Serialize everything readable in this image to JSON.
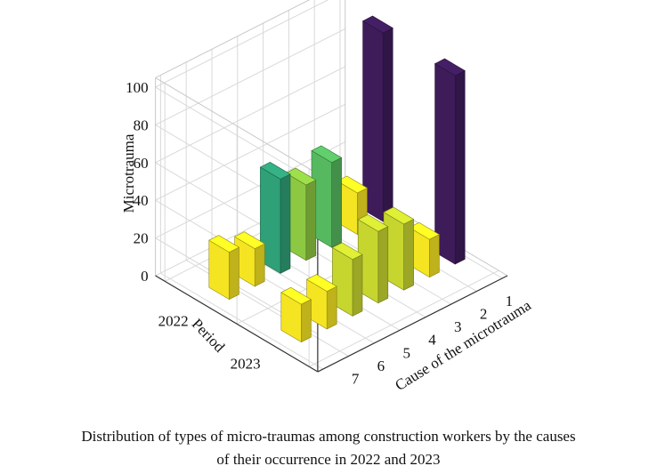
{
  "chart_data": {
    "type": "bar3d",
    "zlabel": "Microtrauma",
    "xlabel": "Cause of the microtrauma",
    "ylabel": "Period",
    "causes": [
      "1",
      "2",
      "3",
      "4",
      "5",
      "6",
      "7"
    ],
    "periods": [
      "2023",
      "2022"
    ],
    "z_ticks": [
      "0",
      "20",
      "40",
      "60",
      "80",
      "100"
    ],
    "zlim": [
      0,
      100
    ],
    "series": [
      {
        "period": "2023",
        "values": [
          100,
          20,
          35,
          38,
          30,
          20,
          20
        ]
      },
      {
        "period": "2022",
        "values": [
          100,
          22,
          45,
          40,
          50,
          20,
          25
        ]
      }
    ],
    "grid": true
  },
  "caption": {
    "line1": "Distribution of types of micro-traumas among construction workers by the causes",
    "line2": "of their occurrence in 2022 and 2023"
  }
}
